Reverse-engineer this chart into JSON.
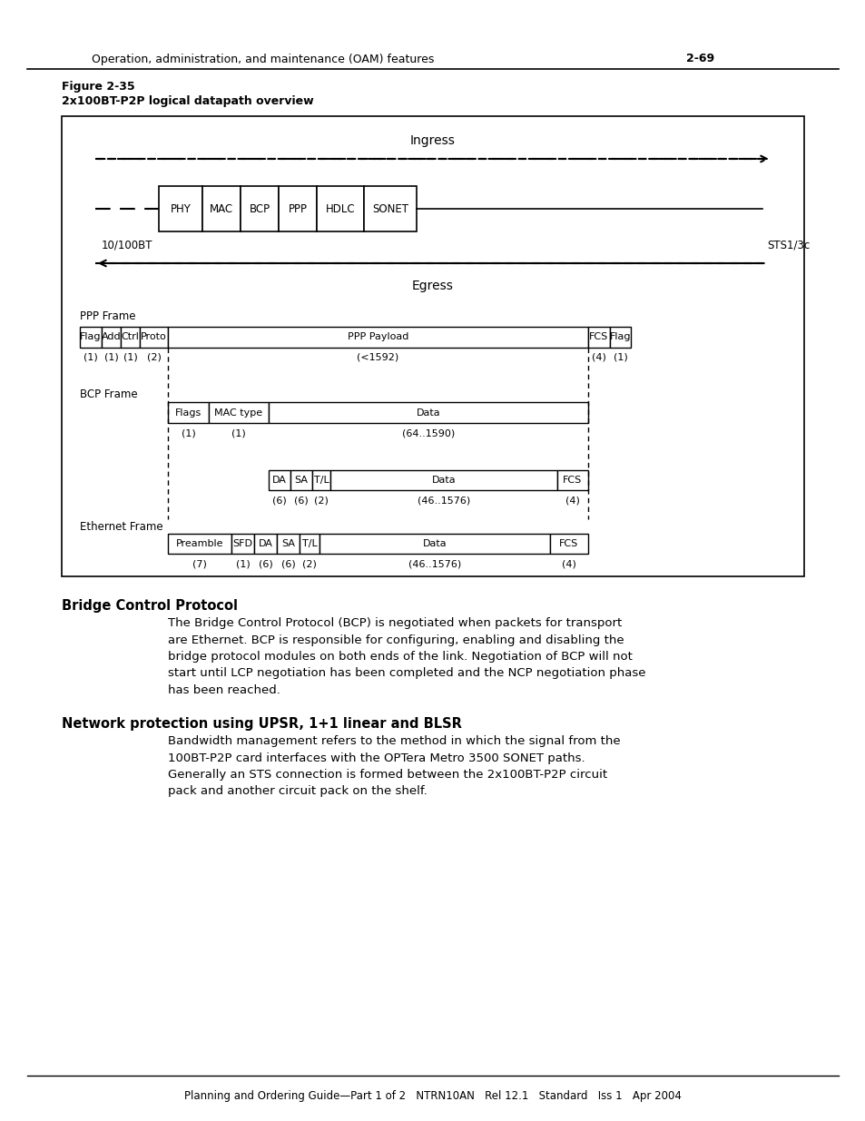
{
  "page_header_text": "Operation, administration, and maintenance (OAM) features   2-69",
  "page_header_bold": "2-69",
  "figure_label": "Figure 2-35",
  "figure_title": "2x100BT-P2P logical datapath overview",
  "ingress_label": "Ingress",
  "egress_label": "Egress",
  "left_label": "10/100BT",
  "right_label": "STS1/3c",
  "blocks": [
    "PHY",
    "MAC",
    "BCP",
    "PPP",
    "HDLC",
    "SONET"
  ],
  "block_widths": [
    48,
    42,
    42,
    42,
    52,
    58
  ],
  "ppp_frame_label": "PPP Frame",
  "bcp_frame_label": "BCP Frame",
  "eth_frame_label": "Ethernet Frame",
  "section1_title": "Bridge Control Protocol",
  "section1_body": "The Bridge Control Protocol (BCP) is negotiated when packets for transport\nare Ethernet. BCP is responsible for configuring, enabling and disabling the\nbridge protocol modules on both ends of the link. Negotiation of BCP will not\nstart until LCP negotiation has been completed and the NCP negotiation phase\nhas been reached.",
  "section2_title": "Network protection using UPSR, 1+1 linear and BLSR",
  "section2_body": "Bandwidth management refers to the method in which the signal from the\n100BT-P2P card interfaces with the OPTera Metro 3500 SONET paths.\nGenerally an STS connection is formed between the 2x100BT-P2P circuit\npack and another circuit pack on the shelf.",
  "footer_text": "Planning and Ordering Guide—Part 1 of 2   NTRN10AN   Rel 12.1   Standard   Iss 1   Apr 2004",
  "bg_color": "#ffffff"
}
